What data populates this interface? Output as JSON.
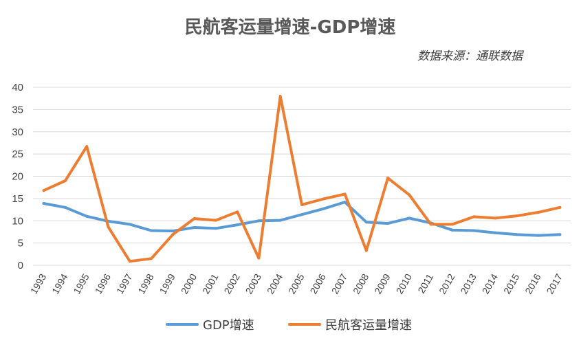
{
  "chart_data": {
    "type": "line",
    "title": "民航客运量增速-GDP增速",
    "source": "数据来源：通联数据",
    "xlabel": "",
    "ylabel": "",
    "ylim": [
      0,
      40
    ],
    "yticks": [
      "0",
      "5",
      "10",
      "15",
      "20",
      "25",
      "30",
      "35",
      "40"
    ],
    "grid": true,
    "legend_position": "bottom",
    "categories": [
      "1993",
      "1994",
      "1995",
      "1996",
      "1997",
      "1998",
      "1999",
      "2000",
      "2001",
      "2002",
      "2003",
      "2004",
      "2005",
      "2006",
      "2007",
      "2008",
      "2009",
      "2010",
      "2011",
      "2012",
      "2013",
      "2014",
      "2015",
      "2016",
      "2017"
    ],
    "series": [
      {
        "name": "GDP增速",
        "color": "#5b9bd5",
        "values": [
          13.9,
          13.0,
          11.0,
          9.9,
          9.2,
          7.8,
          7.7,
          8.5,
          8.3,
          9.1,
          10.0,
          10.1,
          11.4,
          12.7,
          14.2,
          9.7,
          9.4,
          10.6,
          9.5,
          7.9,
          7.8,
          7.3,
          6.9,
          6.7,
          6.9
        ]
      },
      {
        "name": "民航客运量增速",
        "color": "#ed7d31",
        "values": [
          16.8,
          19.0,
          26.7,
          8.6,
          0.9,
          1.5,
          6.9,
          10.5,
          10.1,
          12.0,
          1.6,
          38.0,
          13.6,
          14.9,
          16.0,
          3.3,
          19.6,
          15.8,
          9.2,
          9.2,
          10.9,
          10.6,
          11.1,
          11.9,
          13.0
        ]
      }
    ]
  }
}
